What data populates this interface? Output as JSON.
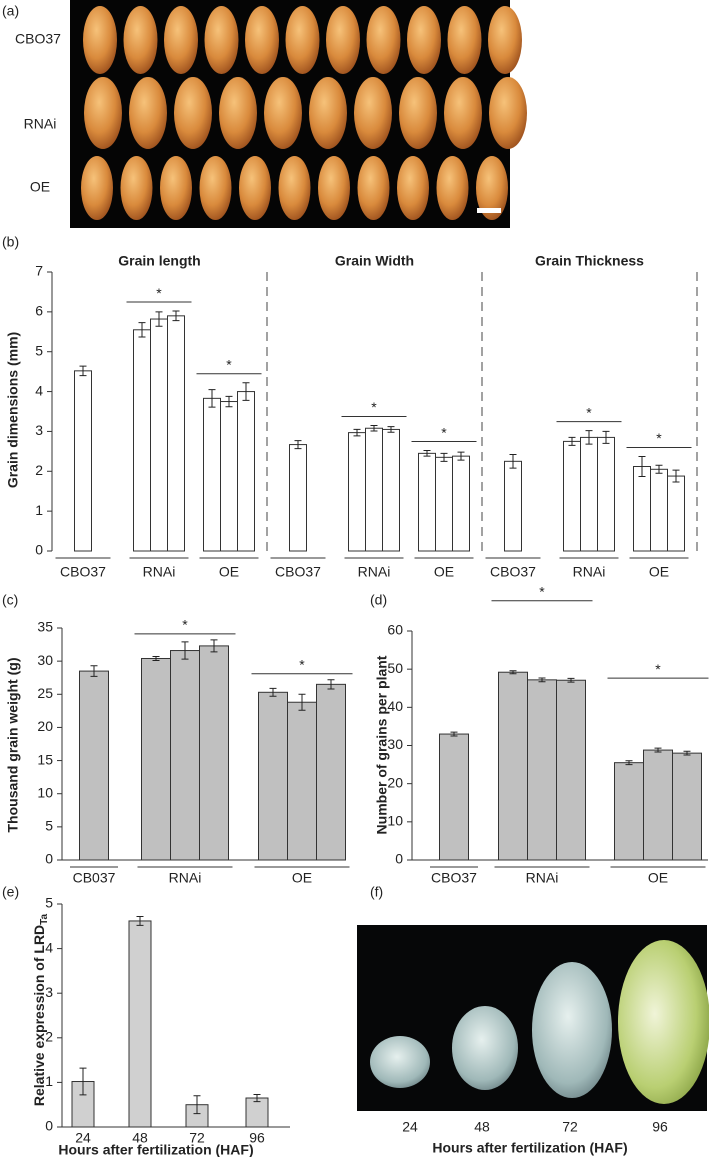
{
  "panel_a": {
    "label": "(a)",
    "row_labels": [
      "CBO37",
      "RNAi",
      "OE"
    ]
  },
  "chart_data": [
    {
      "type": "bar",
      "label": "(b)",
      "ylabel": "Grain dimensions (mm)",
      "ylim": [
        0,
        7
      ],
      "yticks": [
        0,
        1,
        2,
        3,
        4,
        5,
        6,
        7
      ],
      "color": "#ffffff",
      "sections": [
        {
          "title": "Grain length",
          "groups": [
            {
              "name": "CBO37",
              "values": [
                4.52
              ],
              "errors": [
                0.12
              ]
            },
            {
              "name": "RNAi",
              "values": [
                5.55,
                5.82,
                5.9
              ],
              "errors": [
                0.18,
                0.18,
                0.12
              ],
              "annotation": "*"
            },
            {
              "name": "OE",
              "values": [
                3.83,
                3.75,
                4.0
              ],
              "errors": [
                0.22,
                0.13,
                0.22
              ],
              "annotation": "*"
            }
          ]
        },
        {
          "title": "Grain Width",
          "groups": [
            {
              "name": "CBO37",
              "values": [
                2.67
              ],
              "errors": [
                0.1
              ]
            },
            {
              "name": "RNAi",
              "values": [
                2.97,
                3.08,
                3.05
              ],
              "errors": [
                0.08,
                0.07,
                0.07
              ],
              "annotation": "*"
            },
            {
              "name": "OE",
              "values": [
                2.45,
                2.35,
                2.38
              ],
              "errors": [
                0.07,
                0.1,
                0.1
              ],
              "annotation": "*"
            }
          ]
        },
        {
          "title": "Grain Thickness",
          "groups": [
            {
              "name": "CBO37",
              "values": [
                2.25
              ],
              "errors": [
                0.17
              ]
            },
            {
              "name": "RNAi",
              "values": [
                2.75,
                2.85,
                2.85
              ],
              "errors": [
                0.1,
                0.17,
                0.15
              ],
              "annotation": "*"
            },
            {
              "name": "OE",
              "values": [
                2.12,
                2.05,
                1.88
              ],
              "errors": [
                0.25,
                0.1,
                0.15
              ],
              "annotation": "*"
            }
          ]
        }
      ]
    },
    {
      "type": "bar",
      "label": "(c)",
      "ylabel": "Thousand grain weight (g)",
      "ylim": [
        0,
        35
      ],
      "yticks": [
        0,
        5,
        10,
        15,
        20,
        25,
        30,
        35
      ],
      "color": "#c0c0c0",
      "groups": [
        {
          "name": "CB037",
          "values": [
            28.5
          ],
          "errors": [
            0.8
          ]
        },
        {
          "name": "RNAi",
          "values": [
            30.4,
            31.6,
            32.3
          ],
          "errors": [
            0.3,
            1.3,
            0.9
          ],
          "annotation": "*"
        },
        {
          "name": "OE",
          "values": [
            25.3,
            23.8,
            26.5
          ],
          "errors": [
            0.6,
            1.2,
            0.7
          ],
          "annotation": "*"
        }
      ]
    },
    {
      "type": "bar",
      "label": "(d)",
      "ylabel": "Number of grains per plant",
      "ylim": [
        0,
        60
      ],
      "yticks": [
        0,
        10,
        20,
        30,
        40,
        50,
        60
      ],
      "color": "#c0c0c0",
      "groups": [
        {
          "name": "CBO37",
          "values": [
            33.0
          ],
          "errors": [
            0.5
          ]
        },
        {
          "name": "RNAi",
          "values": [
            49.2,
            47.2,
            47.1
          ],
          "errors": [
            0.4,
            0.5,
            0.5
          ],
          "annotation": "*"
        },
        {
          "name": "OE",
          "values": [
            25.5,
            28.8,
            28.0
          ],
          "errors": [
            0.5,
            0.5,
            0.5
          ],
          "annotation": "*"
        }
      ]
    },
    {
      "type": "bar",
      "label": "(e)",
      "ylabel": "Relative expression of LRD",
      "ylabel_subscript": "Ta",
      "xlabel": "Hours after fertilization (HAF)",
      "categories": [
        "24",
        "48",
        "72",
        "96"
      ],
      "values": [
        1.02,
        4.62,
        0.5,
        0.65
      ],
      "errors": [
        0.3,
        0.1,
        0.2,
        0.08
      ],
      "ylim": [
        0,
        5
      ],
      "yticks": [
        0,
        1,
        2,
        3,
        4,
        5
      ],
      "color": "#d0d0d0"
    }
  ],
  "panel_f": {
    "label": "(f)",
    "categories": [
      "24",
      "48",
      "72",
      "96"
    ],
    "xlabel": "Hours after fertilization (HAF)"
  }
}
